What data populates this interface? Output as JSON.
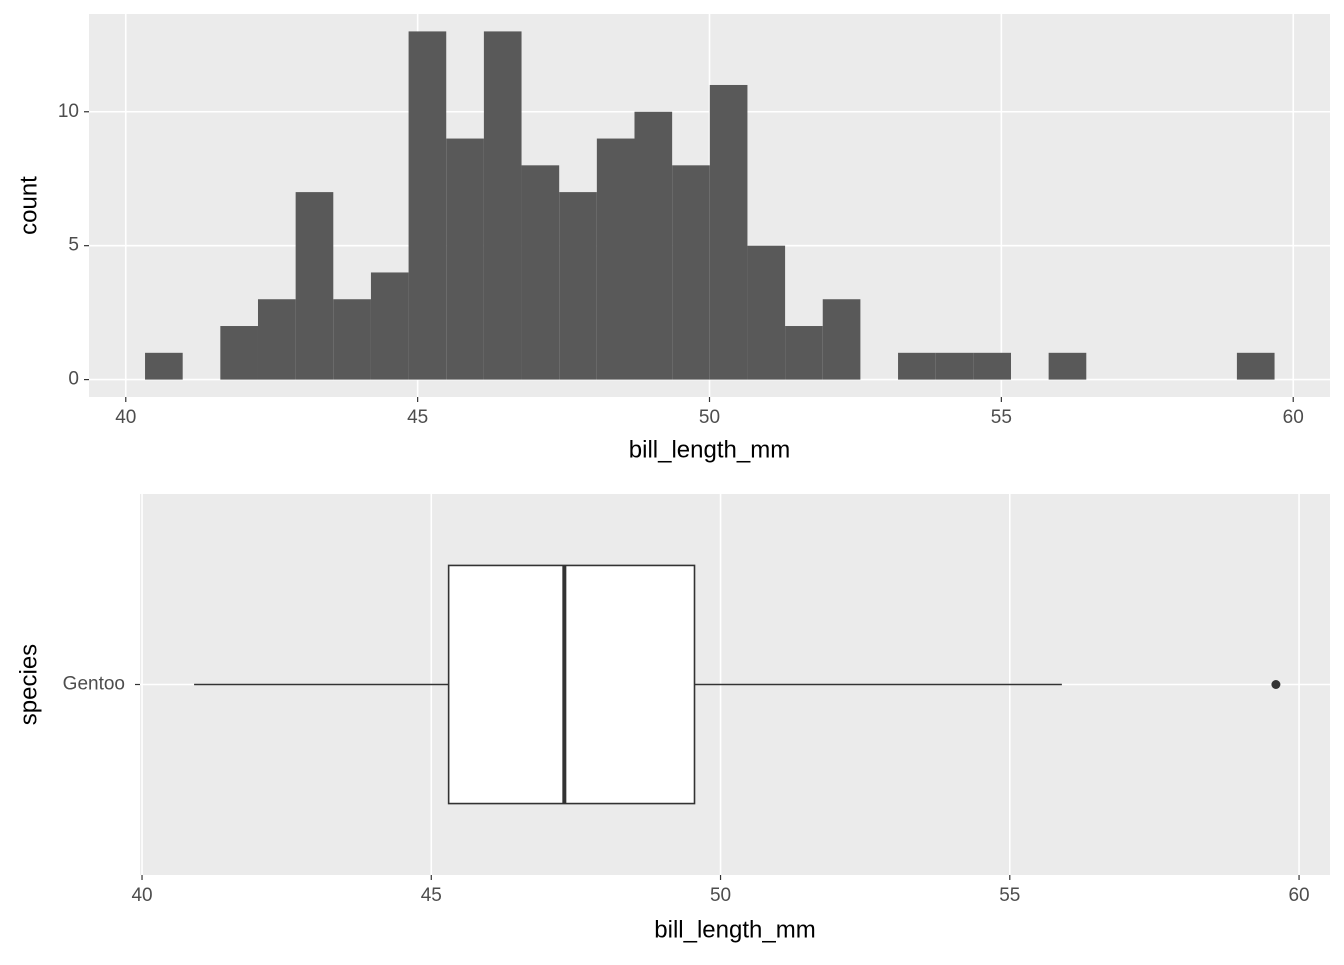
{
  "chart_data": [
    {
      "type": "histogram",
      "bins": [
        40.33,
        40.975,
        41.62,
        42.265,
        42.91,
        43.555,
        44.2,
        44.845,
        45.49,
        46.135,
        46.78,
        47.425,
        48.07,
        48.715,
        49.36,
        50.005,
        50.65,
        51.295,
        51.94,
        52.585,
        53.23,
        53.875,
        54.52,
        55.165,
        55.81,
        56.455,
        57.1,
        57.745,
        58.39,
        59.035,
        59.68
      ],
      "values": [
        1,
        0,
        2,
        3,
        7,
        3,
        4,
        13,
        9,
        13,
        8,
        7,
        9,
        10,
        8,
        11,
        5,
        2,
        3,
        0,
        1,
        1,
        1,
        0,
        1,
        0,
        0,
        0,
        0,
        1
      ],
      "color": "#595959",
      "xlabel": "bill_length_mm",
      "ylabel": "count",
      "xlim": [
        39.37,
        60.63
      ],
      "ylim": [
        -0.65,
        13.65
      ],
      "xticks": [
        40,
        45,
        50,
        55,
        60
      ],
      "yticks": [
        0,
        5,
        10
      ],
      "grid": true
    },
    {
      "type": "boxplot",
      "categories": [
        "Gentoo"
      ],
      "whisker_low": [
        40.9
      ],
      "q1": [
        45.3
      ],
      "median": [
        47.3
      ],
      "q3": [
        49.55
      ],
      "whisker_high": [
        55.9
      ],
      "outliers": [
        [
          59.6
        ]
      ],
      "color": "#ffffff",
      "xlabel": "bill_length_mm",
      "ylabel": "species",
      "xlim": [
        39.965,
        60.535
      ],
      "xticks": [
        40,
        45,
        50,
        55,
        60
      ],
      "grid": true
    }
  ]
}
